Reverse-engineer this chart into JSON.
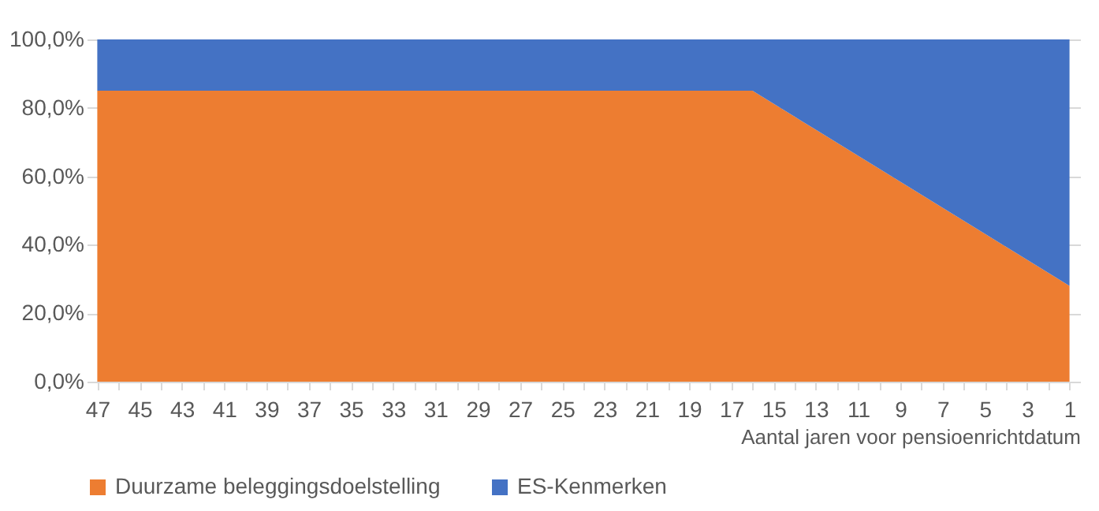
{
  "chart_data": {
    "type": "area",
    "stacked": true,
    "xlabel": "Aantal jaren voor pensioenrichtdatum",
    "categories": [
      "47",
      null,
      "45",
      null,
      "43",
      null,
      "41",
      null,
      "39",
      null,
      "37",
      null,
      "35",
      null,
      "33",
      null,
      "31",
      null,
      "29",
      null,
      "27",
      null,
      "25",
      null,
      "23",
      null,
      "21",
      null,
      "19",
      null,
      "17",
      null,
      "15",
      null,
      "13",
      null,
      "11",
      null,
      "9",
      null,
      "7",
      null,
      "5",
      null,
      "3",
      null,
      "1"
    ],
    "series": [
      {
        "name": "Duurzame beleggingsdoelstelling",
        "color": "#ed7d31",
        "values": [
          85,
          85,
          85,
          85,
          85,
          85,
          85,
          85,
          85,
          85,
          85,
          85,
          85,
          85,
          85,
          85,
          85,
          85,
          85,
          85,
          85,
          85,
          85,
          85,
          85,
          85,
          85,
          85,
          85,
          85,
          85,
          85,
          81.2,
          77.4,
          73.6,
          69.8,
          66,
          62.2,
          58.4,
          54.6,
          50.8,
          47,
          43.2,
          39.4,
          35.6,
          31.8,
          28
        ]
      },
      {
        "name": "ES-Kenmerken",
        "color": "#4472c4",
        "values": [
          15,
          15,
          15,
          15,
          15,
          15,
          15,
          15,
          15,
          15,
          15,
          15,
          15,
          15,
          15,
          15,
          15,
          15,
          15,
          15,
          15,
          15,
          15,
          15,
          15,
          15,
          15,
          15,
          15,
          15,
          15,
          15,
          18.8,
          22.6,
          26.4,
          30.2,
          34,
          37.8,
          41.6,
          45.4,
          49.2,
          53,
          56.8,
          60.6,
          64.4,
          68.2,
          72
        ]
      }
    ],
    "ylim": [
      0,
      100
    ],
    "yticks": [
      {
        "value": 0,
        "label": "0,0%"
      },
      {
        "value": 20,
        "label": "20,0%"
      },
      {
        "value": 40,
        "label": "40,0%"
      },
      {
        "value": 60,
        "label": "60,0%"
      },
      {
        "value": 80,
        "label": "80,0%"
      },
      {
        "value": 100,
        "label": "100,0%"
      }
    ],
    "grid": "y",
    "legend": "bottom"
  }
}
